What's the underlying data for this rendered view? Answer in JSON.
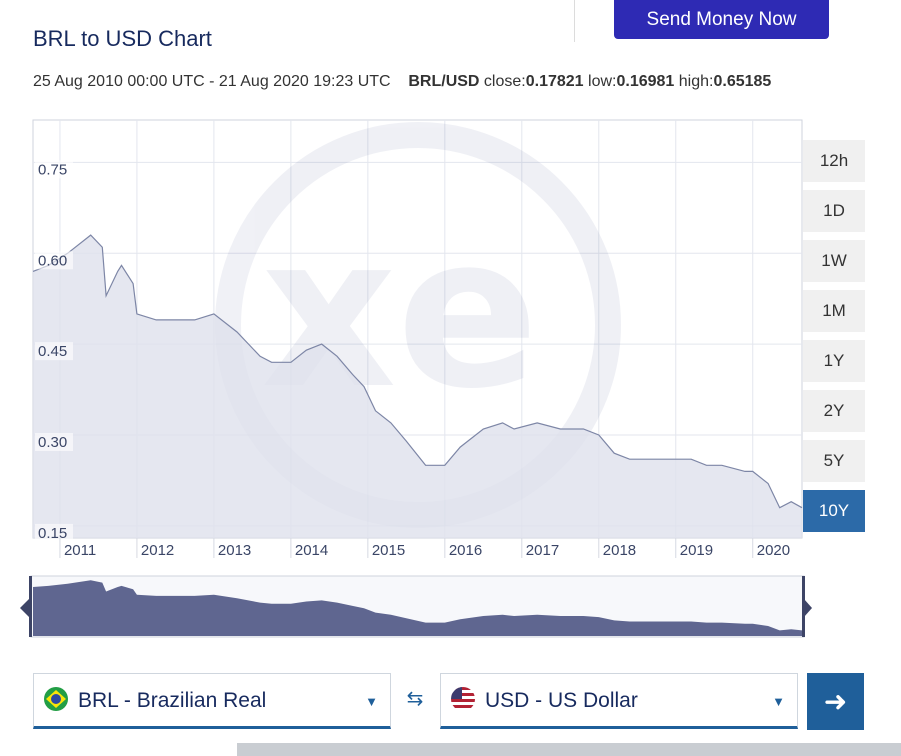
{
  "header": {
    "send_button_label": "Send Money Now",
    "title": "BRL to USD Chart",
    "date_range": "25 Aug 2010 00:00 UTC - 21 Aug 2020 19:23 UTC",
    "pair_label": "BRL/USD",
    "close_label": "close:",
    "close_value": "0.17821",
    "low_label": "low:",
    "low_value": "0.16981",
    "high_label": "high:",
    "high_value": "0.65185"
  },
  "range_buttons": [
    "12h",
    "1D",
    "1W",
    "1M",
    "1Y",
    "2Y",
    "5Y",
    "10Y"
  ],
  "active_range": "10Y",
  "converter": {
    "from_label": "BRL - Brazilian Real",
    "to_label": "USD - US Dollar",
    "from_flag_icon": "brazil-flag-icon",
    "to_flag_icon": "us-flag-icon",
    "swap_icon": "swap-arrows-icon",
    "go_icon": "arrow-right-icon"
  },
  "colors": {
    "brand_button": "#2e2ab4",
    "active_range": "#2c6aa8",
    "line": "#7d86a6",
    "navigator_fill": "#5f6690"
  },
  "chart_data": {
    "type": "area",
    "title": "BRL to USD Chart",
    "x": [
      2010.65,
      2010.85,
      2011.1,
      2011.4,
      2011.55,
      2011.6,
      2011.75,
      2011.8,
      2011.95,
      2012.0,
      2012.25,
      2012.5,
      2012.75,
      2013.0,
      2013.3,
      2013.6,
      2013.75,
      2014.0,
      2014.2,
      2014.4,
      2014.6,
      2014.8,
      2014.95,
      2015.1,
      2015.3,
      2015.5,
      2015.75,
      2016.0,
      2016.2,
      2016.5,
      2016.75,
      2016.9,
      2017.2,
      2017.5,
      2017.8,
      2018.0,
      2018.2,
      2018.4,
      2018.7,
      2018.9,
      2019.2,
      2019.4,
      2019.6,
      2019.9,
      2020.0,
      2020.2,
      2020.35,
      2020.5,
      2020.64
    ],
    "values": [
      0.57,
      0.58,
      0.6,
      0.63,
      0.61,
      0.53,
      0.57,
      0.58,
      0.55,
      0.5,
      0.49,
      0.49,
      0.49,
      0.5,
      0.47,
      0.43,
      0.42,
      0.42,
      0.44,
      0.45,
      0.43,
      0.4,
      0.38,
      0.34,
      0.32,
      0.29,
      0.25,
      0.25,
      0.28,
      0.31,
      0.32,
      0.31,
      0.32,
      0.31,
      0.31,
      0.3,
      0.27,
      0.26,
      0.26,
      0.26,
      0.26,
      0.25,
      0.25,
      0.24,
      0.24,
      0.22,
      0.18,
      0.19,
      0.18
    ],
    "xlim": [
      2010.65,
      2020.64
    ],
    "ylim": [
      0.13,
      0.82
    ],
    "x_ticks": [
      "2011",
      "2012",
      "2013",
      "2014",
      "2015",
      "2016",
      "2017",
      "2018",
      "2019",
      "2020"
    ],
    "y_ticks": [
      0.15,
      0.3,
      0.45,
      0.6,
      0.75
    ],
    "y_tick_labels": [
      "0.15",
      "0.30",
      "0.45",
      "0.60",
      "0.75"
    ],
    "grid": true,
    "legend": "none"
  }
}
